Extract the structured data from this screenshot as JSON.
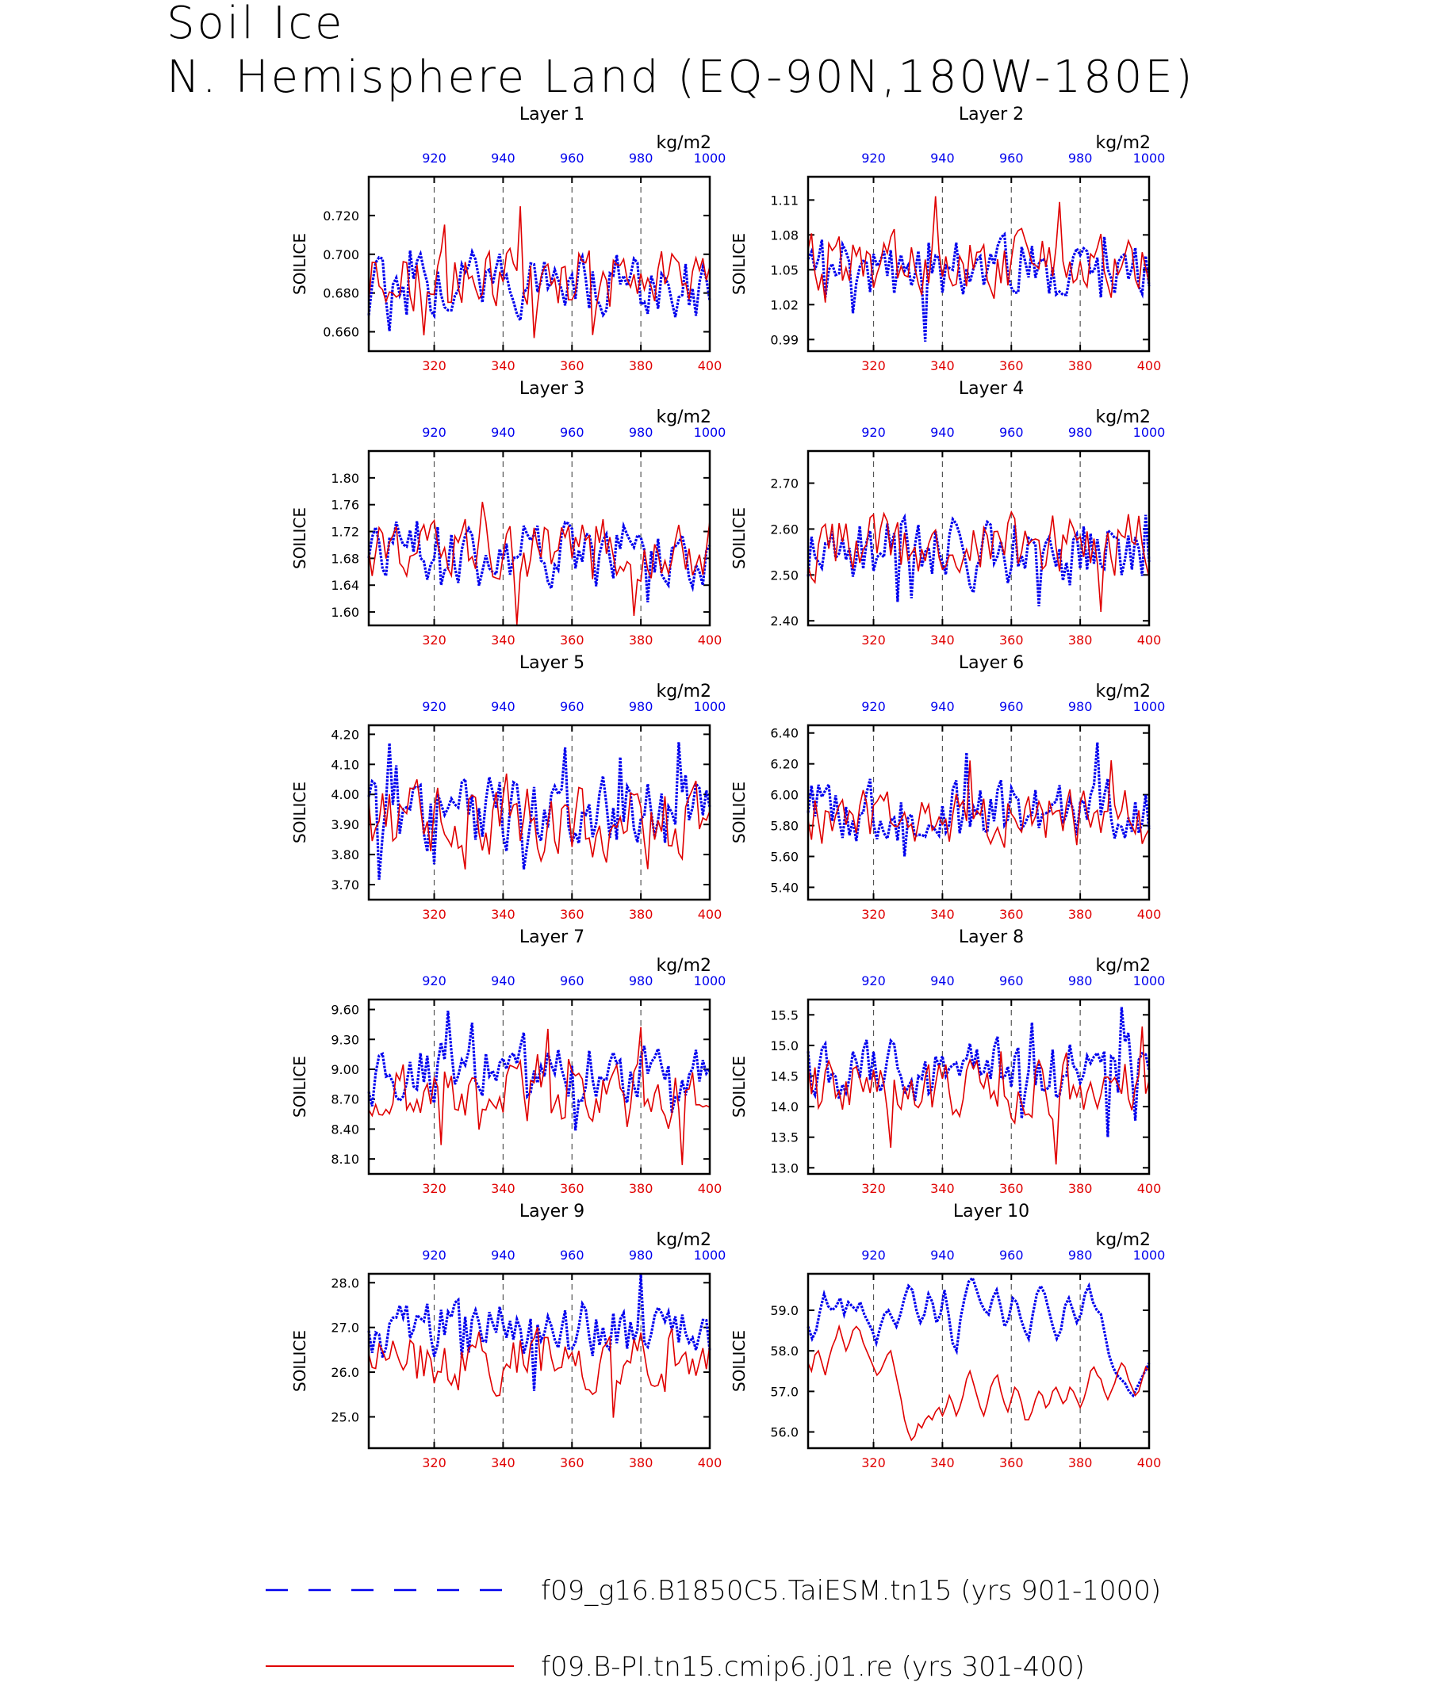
{
  "title": {
    "line1": "Soil Ice",
    "line2": "N. Hemisphere Land (EQ-90N,180W-180E)"
  },
  "colors": {
    "series_blue": "#0000ee",
    "series_red": "#e00000"
  },
  "legend": {
    "items": [
      {
        "label": "f09_g16.B1850C5.TaiESM.tn15 (yrs 901-1000)",
        "color": "#0000ee",
        "style": "dashed"
      },
      {
        "label": "f09.B-PI.tn15.cmip6.j01.re (yrs 301-400)",
        "color": "#e00000",
        "style": "solid"
      }
    ]
  },
  "chart_data": [
    {
      "type": "line",
      "title": "Layer 1",
      "ylabel": "SOILICE",
      "units": "kg/m2",
      "xlim_bottom": [
        301,
        400
      ],
      "xlim_top": [
        901,
        1000
      ],
      "x_ticks_bottom": [
        "320",
        "340",
        "360",
        "380",
        "400"
      ],
      "x_ticks_top": [
        "920",
        "940",
        "960",
        "980",
        "1000"
      ],
      "ylim": [
        0.65,
        0.74
      ],
      "y_ticks": [
        "0.660",
        "0.680",
        "0.700",
        "0.720"
      ],
      "series": [
        {
          "axis": "top",
          "color": "#0000ee",
          "style": "dashed",
          "mean": 0.683,
          "amp": 0.016,
          "seed": 11
        },
        {
          "axis": "bottom",
          "color": "#e00000",
          "style": "solid",
          "mean": 0.688,
          "amp": 0.016,
          "seed": 12
        }
      ]
    },
    {
      "type": "line",
      "title": "Layer 2",
      "ylabel": "SOILICE",
      "units": "kg/m2",
      "xlim_bottom": [
        301,
        400
      ],
      "xlim_top": [
        901,
        1000
      ],
      "x_ticks_bottom": [
        "320",
        "340",
        "360",
        "380",
        "400"
      ],
      "x_ticks_top": [
        "920",
        "940",
        "960",
        "980",
        "1000"
      ],
      "ylim": [
        0.98,
        1.13
      ],
      "y_ticks": [
        "0.99",
        "1.02",
        "1.05",
        "1.08",
        "1.11"
      ],
      "series": [
        {
          "axis": "top",
          "color": "#0000ee",
          "style": "dashed",
          "mean": 1.05,
          "amp": 0.026,
          "seed": 21
        },
        {
          "axis": "bottom",
          "color": "#e00000",
          "style": "solid",
          "mean": 1.055,
          "amp": 0.026,
          "seed": 22
        }
      ]
    },
    {
      "type": "line",
      "title": "Layer 3",
      "ylabel": "SOILICE",
      "units": "kg/m2",
      "xlim_bottom": [
        301,
        400
      ],
      "xlim_top": [
        901,
        1000
      ],
      "x_ticks_bottom": [
        "320",
        "340",
        "360",
        "380",
        "400"
      ],
      "x_ticks_top": [
        "920",
        "940",
        "960",
        "980",
        "1000"
      ],
      "ylim": [
        1.58,
        1.84
      ],
      "y_ticks": [
        "1.60",
        "1.64",
        "1.68",
        "1.72",
        "1.76",
        "1.80"
      ],
      "series": [
        {
          "axis": "top",
          "color": "#0000ee",
          "style": "dashed",
          "mean": 1.69,
          "amp": 0.045,
          "seed": 31
        },
        {
          "axis": "bottom",
          "color": "#e00000",
          "style": "solid",
          "mean": 1.695,
          "amp": 0.045,
          "seed": 32
        }
      ]
    },
    {
      "type": "line",
      "title": "Layer 4",
      "ylabel": "SOILICE",
      "units": "kg/m2",
      "xlim_bottom": [
        301,
        400
      ],
      "xlim_top": [
        901,
        1000
      ],
      "x_ticks_bottom": [
        "320",
        "340",
        "360",
        "380",
        "400"
      ],
      "x_ticks_top": [
        "920",
        "940",
        "960",
        "980",
        "1000"
      ],
      "ylim": [
        2.39,
        2.77
      ],
      "y_ticks": [
        "2.40",
        "2.50",
        "2.60",
        "2.70"
      ],
      "series": [
        {
          "axis": "top",
          "color": "#0000ee",
          "style": "dashed",
          "mean": 2.555,
          "amp": 0.075,
          "seed": 41
        },
        {
          "axis": "bottom",
          "color": "#e00000",
          "style": "solid",
          "mean": 2.565,
          "amp": 0.07,
          "seed": 42
        }
      ]
    },
    {
      "type": "line",
      "title": "Layer 5",
      "ylabel": "SOILICE",
      "units": "kg/m2",
      "xlim_bottom": [
        301,
        400
      ],
      "xlim_top": [
        901,
        1000
      ],
      "x_ticks_bottom": [
        "320",
        "340",
        "360",
        "380",
        "400"
      ],
      "x_ticks_top": [
        "920",
        "940",
        "960",
        "980",
        "1000"
      ],
      "ylim": [
        3.65,
        4.23
      ],
      "y_ticks": [
        "3.70",
        "3.80",
        "3.90",
        "4.00",
        "4.10",
        "4.20"
      ],
      "series": [
        {
          "axis": "top",
          "color": "#0000ee",
          "style": "dashed",
          "mean": 3.935,
          "amp": 0.12,
          "seed": 51
        },
        {
          "axis": "bottom",
          "color": "#e00000",
          "style": "solid",
          "mean": 3.905,
          "amp": 0.12,
          "seed": 52
        }
      ]
    },
    {
      "type": "line",
      "title": "Layer 6",
      "ylabel": "SOILICE",
      "units": "kg/m2",
      "xlim_bottom": [
        301,
        400
      ],
      "xlim_top": [
        901,
        1000
      ],
      "x_ticks_bottom": [
        "320",
        "340",
        "360",
        "380",
        "400"
      ],
      "x_ticks_top": [
        "920",
        "940",
        "960",
        "980",
        "1000"
      ],
      "ylim": [
        5.32,
        6.45
      ],
      "y_ticks": [
        "5.40",
        "5.60",
        "5.80",
        "6.00",
        "6.20",
        "6.40"
      ],
      "series": [
        {
          "axis": "top",
          "color": "#0000ee",
          "style": "dashed",
          "mean": 5.9,
          "amp": 0.2,
          "seed": 61
        },
        {
          "axis": "bottom",
          "color": "#e00000",
          "style": "solid",
          "mean": 5.83,
          "amp": 0.2,
          "seed": 62
        }
      ]
    },
    {
      "type": "line",
      "title": "Layer 7",
      "ylabel": "SOILICE",
      "units": "kg/m2",
      "xlim_bottom": [
        301,
        400
      ],
      "xlim_top": [
        901,
        1000
      ],
      "x_ticks_bottom": [
        "320",
        "340",
        "360",
        "380",
        "400"
      ],
      "x_ticks_top": [
        "920",
        "940",
        "960",
        "980",
        "1000"
      ],
      "ylim": [
        7.95,
        9.7
      ],
      "y_ticks": [
        "8.10",
        "8.40",
        "8.70",
        "9.00",
        "9.30",
        "9.60"
      ],
      "series": [
        {
          "axis": "top",
          "color": "#0000ee",
          "style": "dashed",
          "mean": 8.97,
          "amp": 0.3,
          "seed": 71
        },
        {
          "axis": "bottom",
          "color": "#e00000",
          "style": "solid",
          "mean": 8.75,
          "amp": 0.3,
          "seed": 72
        }
      ]
    },
    {
      "type": "line",
      "title": "Layer 8",
      "ylabel": "SOILICE",
      "units": "kg/m2",
      "xlim_bottom": [
        301,
        400
      ],
      "xlim_top": [
        901,
        1000
      ],
      "x_ticks_bottom": [
        "320",
        "340",
        "360",
        "380",
        "400"
      ],
      "x_ticks_top": [
        "920",
        "940",
        "960",
        "980",
        "1000"
      ],
      "ylim": [
        12.9,
        15.75
      ],
      "y_ticks": [
        "13.0",
        "13.5",
        "14.0",
        "14.5",
        "15.0",
        "15.5"
      ],
      "series": [
        {
          "axis": "top",
          "color": "#0000ee",
          "style": "dashed",
          "mean": 14.6,
          "amp": 0.5,
          "seed": 81
        },
        {
          "axis": "bottom",
          "color": "#e00000",
          "style": "solid",
          "mean": 14.3,
          "amp": 0.5,
          "seed": 82
        }
      ]
    },
    {
      "type": "line",
      "title": "Layer 9",
      "ylabel": "SOILICE",
      "units": "kg/m2",
      "xlim_bottom": [
        301,
        400
      ],
      "xlim_top": [
        901,
        1000
      ],
      "x_ticks_bottom": [
        "320",
        "340",
        "360",
        "380",
        "400"
      ],
      "x_ticks_top": [
        "920",
        "940",
        "960",
        "980",
        "1000"
      ],
      "ylim": [
        24.3,
        28.2
      ],
      "y_ticks": [
        "25.0",
        "26.0",
        "27.0",
        "28.0"
      ],
      "series": [
        {
          "axis": "top",
          "color": "#0000ee",
          "style": "dashed",
          "mean": 26.9,
          "amp": 0.65,
          "seed": 91
        },
        {
          "axis": "bottom",
          "color": "#e00000",
          "style": "solid",
          "mean": 26.3,
          "amp": 0.65,
          "seed": 92
        }
      ]
    },
    {
      "type": "line",
      "title": "Layer 10",
      "ylabel": "SOILICE",
      "units": "kg/m2",
      "xlim_bottom": [
        301,
        400
      ],
      "xlim_top": [
        901,
        1000
      ],
      "x_ticks_bottom": [
        "320",
        "340",
        "360",
        "380",
        "400"
      ],
      "x_ticks_top": [
        "920",
        "940",
        "960",
        "980",
        "1000"
      ],
      "ylim": [
        55.6,
        59.9
      ],
      "y_ticks": [
        "56.0",
        "57.0",
        "58.0",
        "59.0"
      ],
      "series": [
        {
          "axis": "top",
          "color": "#0000ee",
          "style": "dashed",
          "values": [
            58.6,
            58.3,
            58.5,
            59.0,
            59.4,
            59.1,
            59.0,
            59.1,
            59.3,
            58.9,
            59.2,
            59.1,
            59.0,
            59.2,
            58.9,
            58.7,
            58.5,
            58.2,
            58.6,
            58.9,
            59.0,
            58.8,
            58.6,
            58.9,
            59.3,
            59.6,
            59.5,
            59.0,
            58.7,
            58.9,
            59.4,
            59.2,
            58.7,
            58.9,
            59.5,
            58.9,
            58.2,
            58.0,
            58.8,
            59.3,
            59.7,
            59.8,
            59.5,
            59.2,
            59.0,
            58.9,
            59.3,
            59.5,
            59.1,
            58.6,
            58.8,
            59.3,
            59.2,
            58.8,
            58.5,
            58.3,
            58.9,
            59.4,
            59.6,
            59.4,
            59.0,
            58.6,
            58.3,
            58.5,
            59.1,
            59.3,
            59.0,
            58.7,
            58.9,
            59.4,
            59.6,
            59.2,
            59.0,
            58.9,
            58.4,
            57.9,
            57.6,
            57.4,
            57.3,
            57.2,
            57.0,
            56.9,
            57.1,
            57.3,
            57.5,
            57.7
          ]
        },
        {
          "axis": "bottom",
          "color": "#e00000",
          "style": "solid",
          "values": [
            57.7,
            57.5,
            57.9,
            58.0,
            57.7,
            57.4,
            57.8,
            58.1,
            58.3,
            58.6,
            58.3,
            58.0,
            58.2,
            58.5,
            58.6,
            58.5,
            58.2,
            58.0,
            57.8,
            57.6,
            57.4,
            57.5,
            57.7,
            57.9,
            58.0,
            57.6,
            57.2,
            56.8,
            56.3,
            56.0,
            55.8,
            55.9,
            56.2,
            56.1,
            56.3,
            56.4,
            56.3,
            56.5,
            56.6,
            56.4,
            56.6,
            56.9,
            56.7,
            56.4,
            56.6,
            56.9,
            57.3,
            57.5,
            57.2,
            56.9,
            56.6,
            56.4,
            56.7,
            57.1,
            57.3,
            57.4,
            57.0,
            56.7,
            56.5,
            56.8,
            57.1,
            57.0,
            56.7,
            56.3,
            56.3,
            56.5,
            56.8,
            57.0,
            56.9,
            56.6,
            56.7,
            57.0,
            57.1,
            56.9,
            56.7,
            56.8,
            57.1,
            57.0,
            56.8,
            56.6,
            56.8,
            57.1,
            57.5,
            57.6,
            57.4,
            57.3,
            57.0,
            56.8,
            57.0,
            57.2,
            57.5,
            57.7,
            57.6,
            57.3,
            57.1,
            56.9,
            57.0,
            57.3,
            57.6,
            57.5
          ]
        }
      ]
    }
  ]
}
